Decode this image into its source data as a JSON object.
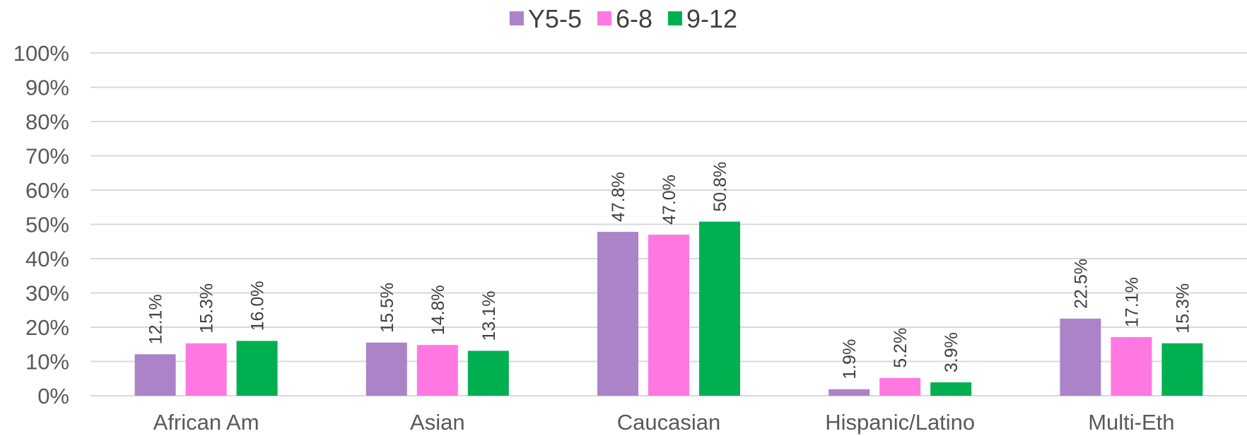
{
  "chart_data": {
    "type": "bar",
    "title": "",
    "xlabel": "",
    "ylabel": "",
    "categories": [
      "African Am",
      "Asian",
      "Caucasian",
      "Hispanic/Latino",
      "Multi-Eth"
    ],
    "series": [
      {
        "name": "Y5-5",
        "color": "#ab83c7",
        "values": [
          12.1,
          15.5,
          47.8,
          1.9,
          22.5
        ],
        "labels": [
          "12.1%",
          "15.5%",
          "47.8%",
          "1.9%",
          "22.5%"
        ]
      },
      {
        "name": "6-8",
        "color": "#ff78e1",
        "values": [
          15.3,
          14.8,
          47.0,
          5.2,
          17.1
        ],
        "labels": [
          "15.3%",
          "14.8%",
          "47.0%",
          "5.2%",
          "17.1%"
        ]
      },
      {
        "name": "9-12",
        "color": "#00b050",
        "values": [
          16.0,
          13.1,
          50.8,
          3.9,
          15.3
        ],
        "labels": [
          "16.0%",
          "13.1%",
          "50.8%",
          "3.9%",
          "15.3%"
        ]
      }
    ],
    "ylim": [
      0,
      100
    ],
    "yticks": [
      0,
      10,
      20,
      30,
      40,
      50,
      60,
      70,
      80,
      90,
      100
    ],
    "ytick_labels": [
      "0%",
      "10%",
      "20%",
      "30%",
      "40%",
      "50%",
      "60%",
      "70%",
      "80%",
      "90%",
      "100%"
    ],
    "grid": true,
    "legend_position": "top-center"
  }
}
